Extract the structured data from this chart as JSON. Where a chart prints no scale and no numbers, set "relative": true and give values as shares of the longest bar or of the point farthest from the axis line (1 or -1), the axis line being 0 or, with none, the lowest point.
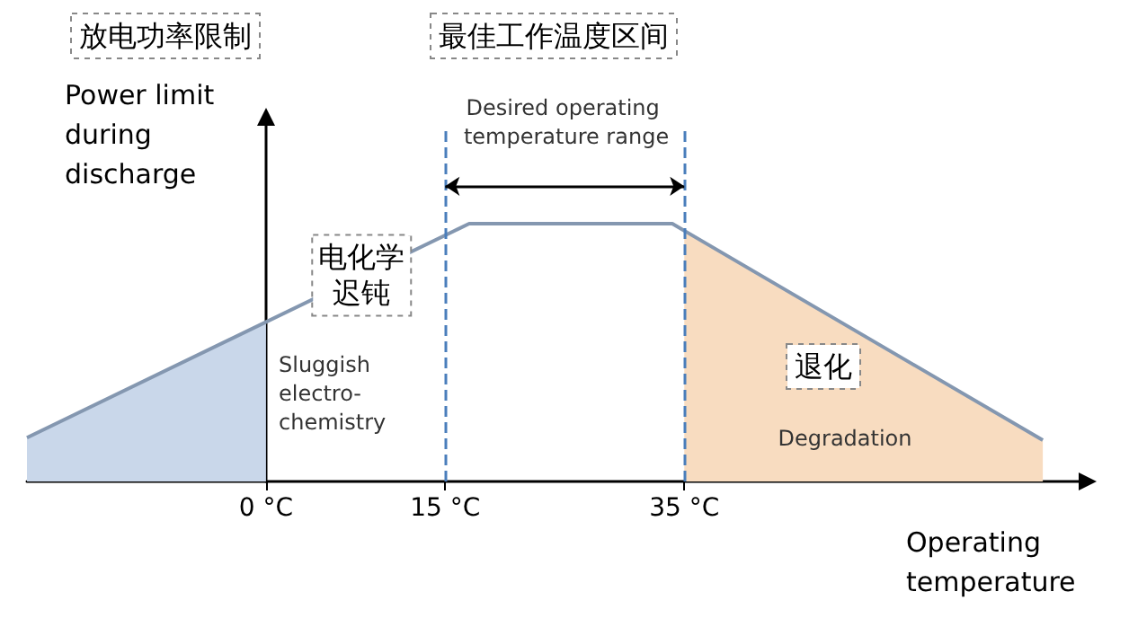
{
  "chart_data": {
    "type": "line",
    "relative": true,
    "xlabel": "Operating temperature",
    "ylabel": "Power limit during discharge",
    "x": [
      -20,
      17,
      34,
      65
    ],
    "xlim": [
      -20,
      68
    ],
    "xticks": [
      {
        "value": 0,
        "label": "0 °C"
      },
      {
        "value": 15,
        "label": "15 °C"
      },
      {
        "value": 35,
        "label": "35 °C"
      }
    ],
    "series": [
      {
        "color": "#8497b0",
        "values": [
          0.17,
          1,
          1,
          0.16
        ]
      },
      {
        "type": "area",
        "color": "#c9d7ea",
        "x": [
          -20,
          0
        ],
        "values": [
          0.17,
          0.62
        ]
      },
      {
        "type": "area",
        "color": "#f8dcc0",
        "x": [
          35,
          65
        ],
        "values": [
          0.97,
          0.16
        ]
      }
    ],
    "ref_lines": [
      {
        "axis": "x",
        "value": 15,
        "color": "#4a7ebb",
        "line_style": "dashed"
      },
      {
        "axis": "x",
        "value": 35,
        "color": "#4a7ebb",
        "line_style": "dashed"
      }
    ],
    "annotations": [
      "放电功率限制",
      "最佳工作温度区间",
      "Desired operating temperature range",
      {
        "text": "电化学迟钝",
        "x": 8,
        "y": 0.8
      },
      "退化",
      "Sluggish electro-chemistry",
      "Degradation"
    ],
    "grid": false,
    "marker": "none",
    "tick_labels": "x",
    "line_style": "solid"
  }
}
